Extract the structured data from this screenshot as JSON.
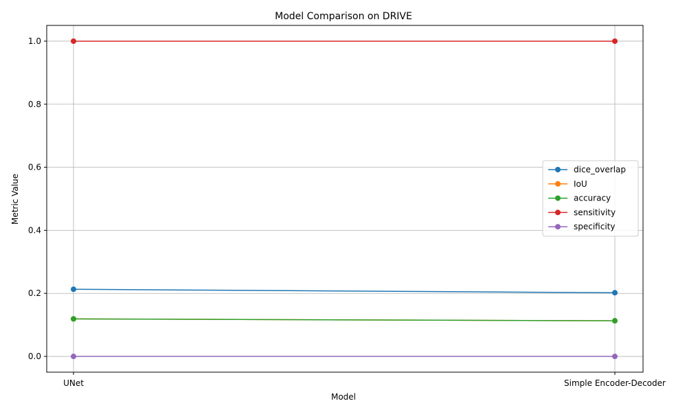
{
  "chart_data": {
    "type": "line",
    "title": "Model Comparison on DRIVE",
    "xlabel": "Model",
    "ylabel": "Metric Value",
    "categories": [
      "UNet",
      "Simple Encoder-Decoder"
    ],
    "ylim": [
      -0.05,
      1.05
    ],
    "yticks": [
      0.0,
      0.2,
      0.4,
      0.6,
      0.8,
      1.0
    ],
    "ytick_labels": [
      "0.0",
      "0.2",
      "0.4",
      "0.6",
      "0.8",
      "1.0"
    ],
    "grid": true,
    "legend_position": "center-right",
    "series": [
      {
        "name": "dice_overlap",
        "color": "#1f77b4",
        "values": [
          0.213,
          0.202
        ]
      },
      {
        "name": "IoU",
        "color": "#ff7f0e",
        "values": [
          0.119,
          0.113
        ]
      },
      {
        "name": "accuracy",
        "color": "#2ca02c",
        "values": [
          0.119,
          0.113
        ]
      },
      {
        "name": "sensitivity",
        "color": "#d62728",
        "values": [
          1.0,
          1.0
        ]
      },
      {
        "name": "specificity",
        "color": "#9467bd",
        "values": [
          0.0,
          0.0
        ]
      }
    ]
  }
}
